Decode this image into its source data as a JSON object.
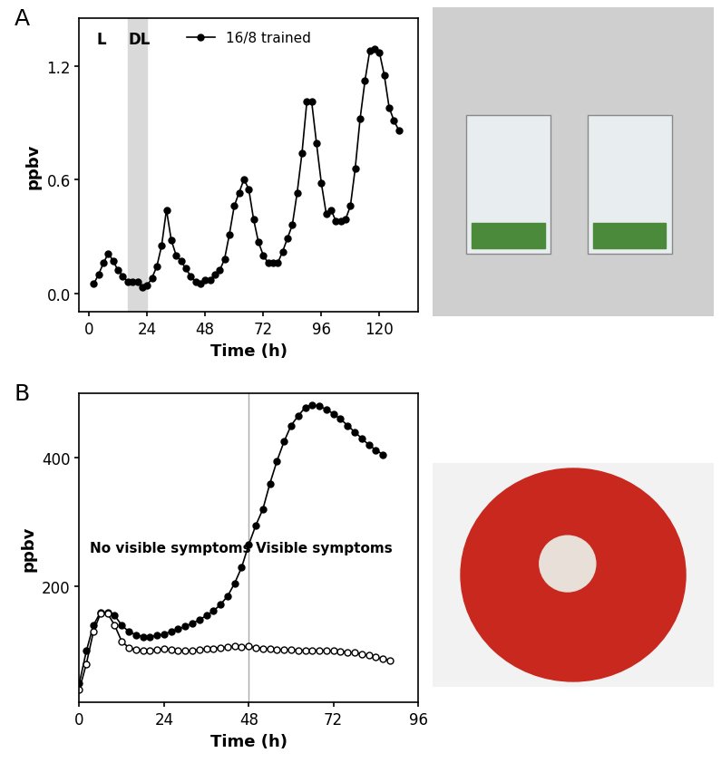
{
  "chart_data": [
    {
      "type": "line",
      "title": "A",
      "x_label": "Time (h)",
      "y_label": "ppbv",
      "xlim": [
        -4,
        136
      ],
      "xticks": [
        0,
        24,
        48,
        72,
        96,
        120
      ],
      "ylim": [
        -0.1,
        1.45
      ],
      "yticks": [
        0.0,
        0.6,
        1.2
      ],
      "grid": false,
      "legend": "upper center",
      "annotations": [
        "L",
        "DL"
      ],
      "shaded_x": [
        16,
        24
      ],
      "series": [
        {
          "name": "16/8 trained",
          "color": "#000000",
          "marker": "circle",
          "line_style": "solid",
          "x": [
            2,
            4,
            6,
            8,
            10,
            12,
            14,
            16,
            18,
            20,
            22,
            24,
            26,
            28,
            30,
            32,
            34,
            36,
            38,
            40,
            42,
            44,
            46,
            48,
            50,
            52,
            54,
            56,
            58,
            60,
            62,
            64,
            66,
            68,
            70,
            72,
            74,
            76,
            78,
            80,
            82,
            84,
            86,
            88,
            90,
            92,
            94,
            96,
            98,
            100,
            102,
            104,
            106,
            108,
            110,
            112,
            114,
            116,
            118,
            120,
            122,
            124,
            126,
            128
          ],
          "values": [
            0.05,
            0.1,
            0.16,
            0.21,
            0.17,
            0.12,
            0.09,
            0.06,
            0.06,
            0.06,
            0.03,
            0.04,
            0.08,
            0.14,
            0.25,
            0.44,
            0.28,
            0.2,
            0.17,
            0.13,
            0.09,
            0.06,
            0.05,
            0.07,
            0.07,
            0.1,
            0.12,
            0.18,
            0.31,
            0.46,
            0.53,
            0.6,
            0.55,
            0.39,
            0.27,
            0.2,
            0.16,
            0.16,
            0.16,
            0.22,
            0.29,
            0.36,
            0.53,
            0.74,
            1.01,
            1.01,
            0.79,
            0.58,
            0.42,
            0.44,
            0.38,
            0.38,
            0.39,
            0.46,
            0.66,
            0.92,
            1.12,
            1.28,
            1.29,
            1.27,
            1.15,
            0.98,
            0.91,
            0.86
          ]
        }
      ]
    },
    {
      "type": "scatter",
      "title": "B",
      "x_label": "Time (h)",
      "y_label": "ppbv",
      "xlim": [
        0,
        96
      ],
      "xticks": [
        0,
        24,
        48,
        72,
        96
      ],
      "ylim": [
        20,
        500
      ],
      "yticks": [
        200,
        400
      ],
      "grid": false,
      "annotations": [
        "No visible symptoms",
        "Visible symptoms"
      ],
      "vline_x": 48,
      "series": [
        {
          "color": "#000000",
          "marker": "circle",
          "line_style": "solid",
          "x": [
            0,
            2,
            4,
            6,
            8,
            10,
            12,
            14,
            16,
            18,
            20,
            22,
            24,
            26,
            28,
            30,
            32,
            34,
            36,
            38,
            40,
            42,
            44,
            46,
            48,
            50,
            52,
            54,
            56,
            58,
            60,
            62,
            64,
            66,
            68,
            70,
            72,
            74,
            76,
            78,
            80,
            82,
            84,
            86
          ],
          "values": [
            50,
            100,
            140,
            160,
            160,
            155,
            140,
            130,
            125,
            122,
            122,
            124,
            126,
            130,
            134,
            138,
            143,
            148,
            155,
            162,
            172,
            185,
            205,
            230,
            265,
            295,
            320,
            360,
            395,
            425,
            450,
            465,
            478,
            482,
            480,
            475,
            468,
            460,
            450,
            440,
            430,
            420,
            412,
            405
          ]
        },
        {
          "color": "#000000",
          "marker": "open circle",
          "line_style": "solid",
          "x": [
            0,
            2,
            4,
            6,
            8,
            10,
            12,
            14,
            16,
            18,
            20,
            22,
            24,
            26,
            28,
            30,
            32,
            34,
            36,
            38,
            40,
            42,
            44,
            46,
            48,
            50,
            52,
            54,
            56,
            58,
            60,
            62,
            64,
            66,
            68,
            70,
            72,
            74,
            76,
            78,
            80,
            82,
            84,
            86,
            88
          ],
          "values": [
            40,
            80,
            130,
            158,
            158,
            140,
            115,
            105,
            102,
            101,
            101,
            102,
            103,
            102,
            101,
            100,
            101,
            102,
            103,
            104,
            105,
            106,
            107,
            106,
            107,
            105,
            104,
            103,
            102,
            102,
            102,
            101,
            101,
            101,
            101,
            101,
            100,
            99,
            98,
            97,
            95,
            93,
            90,
            88,
            85
          ]
        }
      ]
    }
  ]
}
